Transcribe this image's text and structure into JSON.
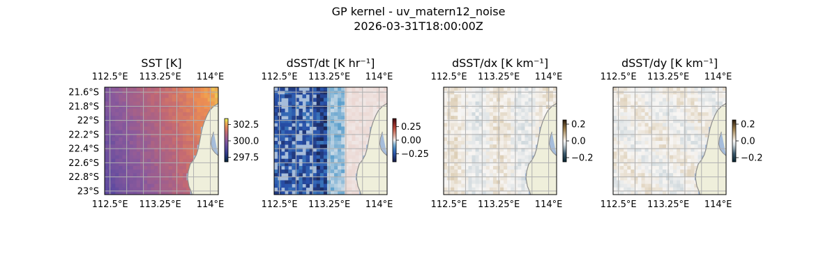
{
  "figure": {
    "title": "GP kernel - uv_matern12_noise",
    "subtitle": "2026-03-31T18:00:00Z"
  },
  "colors": {
    "ocean": "#a6bddb",
    "land": "#efefdb",
    "coast": "#8c8c8c",
    "grid": "#b0b0b0",
    "frame": "#000000"
  },
  "chart_data": [
    {
      "type": "heatmap",
      "title": "SST [K]",
      "field": "sst",
      "xlabel": "",
      "ylabel": "",
      "xlim": [
        112.42,
        114.12
      ],
      "ylim": [
        -23.05,
        -21.53
      ],
      "x_ticks": [
        "112.5°E",
        "113.25°E",
        "114°E"
      ],
      "x_tick_values": [
        112.5,
        113.25,
        114.0
      ],
      "y_ticks": [
        "21.6°S",
        "21.8°S",
        "22°S",
        "22.2°S",
        "22.4°S",
        "22.6°S",
        "22.8°S",
        "23°S"
      ],
      "y_tick_values": [
        -21.6,
        -21.8,
        -22.0,
        -22.2,
        -22.4,
        -22.6,
        -22.8,
        -23.0
      ],
      "grid": true,
      "colormap": "thermal",
      "colorbar": {
        "ticks": [
          "302.5",
          "300.0",
          "297.5"
        ],
        "tick_values": [
          302.5,
          300.0,
          297.5
        ],
        "range": [
          296.8,
          303.4
        ]
      },
      "value_range": [
        298.5,
        302.8
      ]
    },
    {
      "type": "heatmap",
      "title": "dSST/dt [K hr⁻¹]",
      "field": "dsdt",
      "xlabel": "",
      "ylabel": "",
      "xlim": [
        112.42,
        114.12
      ],
      "ylim": [
        -23.05,
        -21.53
      ],
      "x_ticks": [
        "112.5°E",
        "113.25°E",
        "114°E"
      ],
      "x_tick_values": [
        112.5,
        113.25,
        114.0
      ],
      "y_ticks": [],
      "grid": true,
      "colormap": "balance",
      "colorbar": {
        "ticks": [
          "0.25",
          "0.00",
          "−0.25"
        ],
        "tick_values": [
          0.25,
          0.0,
          -0.25
        ],
        "range": [
          -0.4,
          0.4
        ]
      },
      "value_range": [
        -0.4,
        0.05
      ]
    },
    {
      "type": "heatmap",
      "title": "dSST/dx [K km⁻¹]",
      "field": "dsdx",
      "xlabel": "",
      "ylabel": "",
      "xlim": [
        112.42,
        114.12
      ],
      "ylim": [
        -23.05,
        -21.53
      ],
      "x_ticks": [
        "112.5°E",
        "113.25°E",
        "114°E"
      ],
      "x_tick_values": [
        112.5,
        113.25,
        114.0
      ],
      "y_ticks": [],
      "grid": true,
      "colormap": "diff",
      "colorbar": {
        "ticks": [
          "0.2",
          "0.0",
          "−0.2"
        ],
        "tick_values": [
          0.2,
          0.0,
          -0.2
        ],
        "range": [
          -0.25,
          0.25
        ]
      },
      "value_range": [
        -0.05,
        0.05
      ]
    },
    {
      "type": "heatmap",
      "title": "dSST/dy [K km⁻¹]",
      "field": "dsdy",
      "xlabel": "",
      "ylabel": "",
      "xlim": [
        112.42,
        114.12
      ],
      "ylim": [
        -23.05,
        -21.53
      ],
      "x_ticks": [
        "112.5°E",
        "113.25°E",
        "114°E"
      ],
      "x_tick_values": [
        112.5,
        113.25,
        114.0
      ],
      "y_ticks": [],
      "grid": true,
      "colormap": "diff",
      "colorbar": {
        "ticks": [
          "0.2",
          "0.0",
          "−0.2"
        ],
        "tick_values": [
          0.2,
          0.0,
          -0.2
        ],
        "range": [
          -0.25,
          0.25
        ]
      },
      "value_range": [
        -0.05,
        0.05
      ]
    }
  ]
}
